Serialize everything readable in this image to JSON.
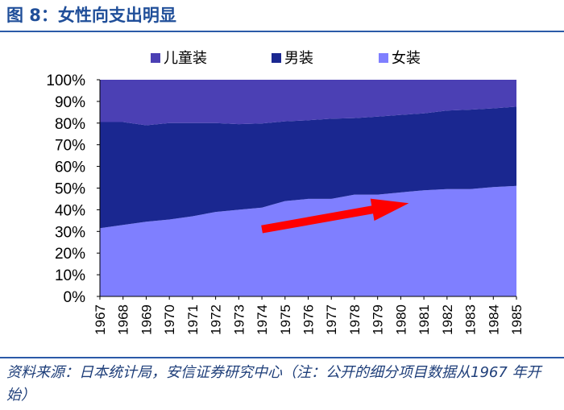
{
  "figure_title": "图 8：女性向支出明显",
  "source_note": "资料来源：日本统计局，安信证券研究中心（注：公开的细分项目数据从1967 年开始）",
  "chart_data": {
    "type": "area",
    "stacked": true,
    "percent": true,
    "x": [
      "1967",
      "1968",
      "1969",
      "1970",
      "1971",
      "1972",
      "1973",
      "1974",
      "1975",
      "1976",
      "1977",
      "1978",
      "1979",
      "1980",
      "1981",
      "1982",
      "1983",
      "1984",
      "1985"
    ],
    "series": [
      {
        "name": "女装",
        "color": "#7f7fff",
        "values": [
          31.5,
          33,
          34.5,
          35.5,
          37,
          39,
          40,
          41,
          44,
          45,
          45,
          47,
          47,
          48,
          49,
          49.5,
          49.5,
          50.5,
          51
        ]
      },
      {
        "name": "男装",
        "color": "#1a2790",
        "values": [
          49,
          47.5,
          44.5,
          44.5,
          43,
          41,
          39.5,
          38.8,
          36.8,
          36.3,
          37,
          35.3,
          36,
          35.8,
          35.5,
          36.3,
          36.7,
          36.3,
          36.6
        ]
      },
      {
        "name": "儿童装",
        "color": "#4b40b4",
        "values": [
          19.5,
          19.5,
          21,
          20,
          20,
          20,
          20.5,
          20.2,
          19.2,
          18.7,
          18,
          17.7,
          17,
          16.2,
          15.5,
          14.2,
          13.8,
          13.2,
          12.4
        ]
      }
    ],
    "legend_order": [
      "儿童装",
      "男装",
      "女装"
    ],
    "y_ticks": [
      "0%",
      "10%",
      "20%",
      "30%",
      "40%",
      "50%",
      "60%",
      "70%",
      "80%",
      "90%",
      "100%"
    ],
    "ylim": [
      0,
      100
    ],
    "legend_position": "top",
    "grid": false,
    "annotation": {
      "type": "arrow",
      "color": "#ff0000",
      "from": {
        "x": "1974",
        "y": 31
      },
      "to": {
        "x": "1980",
        "y": 43
      }
    }
  }
}
